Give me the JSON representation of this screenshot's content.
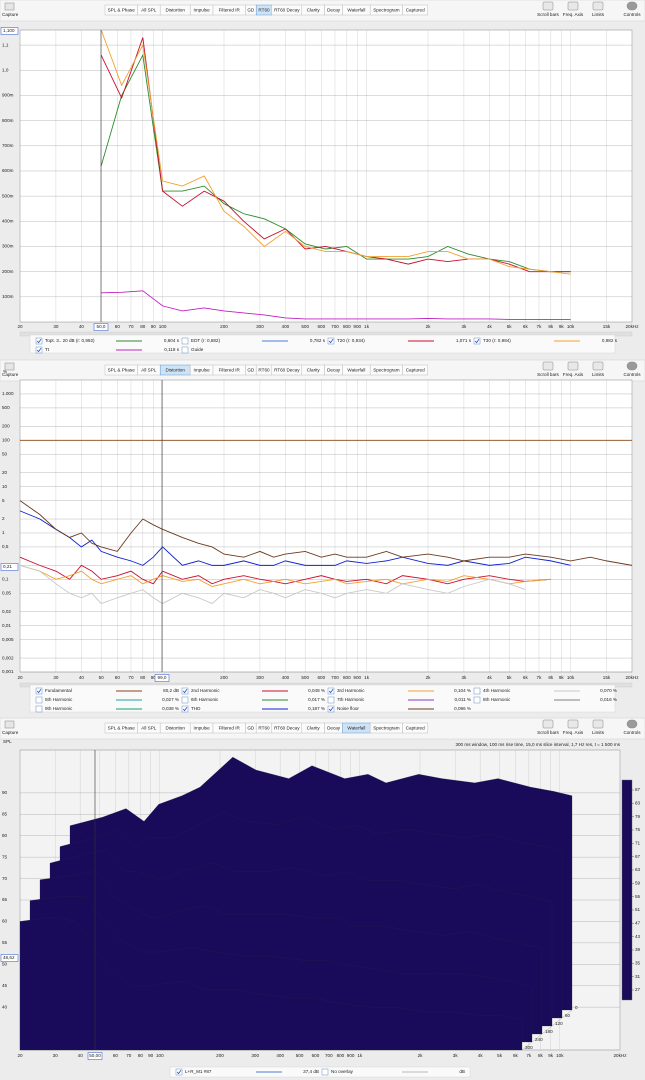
{
  "toolbar": {
    "capture": "Capture",
    "tabs": [
      "SPL & Phase",
      "All SPL",
      "Distortion",
      "Impulse",
      "Filtered IR",
      "GD",
      "RT60",
      "RT60 Decay",
      "Clarity",
      "Decay",
      "Waterfall",
      "Spectrogram",
      "Captured"
    ],
    "tools": [
      "Scroll bars",
      "Freq. Axis",
      "Limits",
      "Controls"
    ]
  },
  "chart_data": [
    {
      "type": "line",
      "active_tab": "RT60",
      "log_x": true,
      "grid": true,
      "cursor_x_label": "50,0",
      "cursor_y_label": "1,100",
      "x": [
        50,
        63,
        80,
        100,
        125,
        160,
        200,
        250,
        315,
        400,
        500,
        630,
        800,
        1000,
        1250,
        1600,
        2000,
        2500,
        3150,
        4000,
        5000,
        6300,
        8000,
        10000
      ],
      "xlim": [
        20,
        20000
      ],
      "ylim": [
        0,
        1.16
      ],
      "xticks": [
        20,
        30,
        40,
        50,
        60,
        70,
        80,
        90,
        100,
        200,
        300,
        400,
        500,
        600,
        700,
        800,
        900,
        {
          "value": 1000,
          "label": "1k"
        },
        {
          "value": 2000,
          "label": "2k"
        },
        {
          "value": 3000,
          "label": "3k"
        },
        {
          "value": 4000,
          "label": "4k"
        },
        {
          "value": 5000,
          "label": "5k"
        },
        {
          "value": 6000,
          "label": "6k"
        },
        {
          "value": 7000,
          "label": "7k"
        },
        {
          "value": 8000,
          "label": "8k"
        },
        {
          "value": 9000,
          "label": "9k"
        },
        {
          "value": 10000,
          "label": "10k"
        },
        {
          "value": 15000,
          "label": "15k"
        },
        {
          "value": 20000,
          "label": "20kHz"
        }
      ],
      "yticks": [
        {
          "value": 0.1,
          "label": "100m"
        },
        {
          "value": 0.2,
          "label": "200m"
        },
        {
          "value": 0.3,
          "label": "300m"
        },
        {
          "value": 0.4,
          "label": "400m"
        },
        {
          "value": 0.5,
          "label": "500m"
        },
        {
          "value": 0.6,
          "label": "600m"
        },
        {
          "value": 0.7,
          "label": "700m"
        },
        {
          "value": 0.8,
          "label": "800m"
        },
        {
          "value": 0.9,
          "label": "900m"
        },
        {
          "value": 1,
          "label": "1,0"
        },
        {
          "value": 1.1,
          "label": "1,1"
        }
      ],
      "series": [
        {
          "name": "Topt. 3.. 20 dB (r: 0,992)",
          "color": "#2e8b2e",
          "checked": true,
          "legend_value": "0,604 s",
          "values": [
            0.62,
            0.9,
            1.06,
            0.52,
            0.52,
            0.54,
            0.47,
            0.43,
            0.41,
            0.37,
            0.31,
            0.29,
            0.3,
            0.25,
            0.25,
            0.25,
            0.26,
            0.3,
            0.27,
            0.25,
            0.24,
            0.21,
            0.2,
            0.2
          ]
        },
        {
          "name": "EDT (r: 0,882)",
          "color": "#4f7fd9",
          "checked": false,
          "legend_value": "0,782 s"
        },
        {
          "name": "T20 (r: 0,934)",
          "color": "#c8102e",
          "checked": true,
          "legend_value": "1,071 s",
          "values": [
            1.06,
            0.89,
            1.13,
            0.52,
            0.46,
            0.52,
            0.48,
            0.4,
            0.33,
            0.37,
            0.29,
            0.3,
            0.28,
            0.26,
            0.25,
            0.23,
            0.25,
            0.24,
            0.25,
            0.25,
            0.23,
            0.2,
            0.2,
            0.2
          ]
        },
        {
          "name": "T30 (r: 0,984)",
          "color": "#f0a030",
          "checked": true,
          "legend_value": "0,982 s",
          "values": [
            1.16,
            0.94,
            1.1,
            0.56,
            0.54,
            0.58,
            0.44,
            0.38,
            0.3,
            0.36,
            0.3,
            0.28,
            0.28,
            0.26,
            0.26,
            0.26,
            0.28,
            0.28,
            0.25,
            0.25,
            0.22,
            0.21,
            0.2,
            0.19
          ]
        },
        {
          "name": "Tt",
          "color": "#c020c0",
          "checked": true,
          "legend_value": "0,118 s",
          "values": [
            0.116,
            0.118,
            0.124,
            0.064,
            0.044,
            0.056,
            0.044,
            0.036,
            0.028,
            0.016,
            0.012,
            0.012,
            0.012,
            0.012,
            0.012,
            0.012,
            0.014,
            0.012,
            0.012,
            0.012,
            0.01,
            0.01,
            0.01,
            0.01
          ]
        }
      ],
      "legend_extra": "Guide"
    },
    {
      "type": "line",
      "active_tab": "Distortion",
      "log_x": true,
      "log_y": true,
      "grid": true,
      "y_label": "%",
      "cursor_x_label": "99,0",
      "cursor_y_label": "0,21",
      "x": [
        20,
        25,
        30,
        35,
        40,
        45,
        50,
        60,
        70,
        80,
        90,
        100,
        125,
        150,
        175,
        200,
        250,
        300,
        350,
        400,
        500,
        600,
        700,
        800,
        1000,
        1250,
        1500,
        2000,
        2500,
        3000,
        4000,
        5000,
        6000,
        8000,
        10000,
        12500,
        15000,
        20000
      ],
      "xlim": [
        20,
        20000
      ],
      "ylim": [
        0.001,
        2000
      ],
      "xticks": [
        20,
        30,
        40,
        50,
        60,
        70,
        80,
        90,
        100,
        200,
        300,
        400,
        500,
        600,
        700,
        800,
        900,
        {
          "value": 1000,
          "label": "1k"
        },
        {
          "value": 2000,
          "label": "2k"
        },
        {
          "value": 3000,
          "label": "3k"
        },
        {
          "value": 4000,
          "label": "4k"
        },
        {
          "value": 5000,
          "label": "5k"
        },
        {
          "value": 6000,
          "label": "6k"
        },
        {
          "value": 7000,
          "label": "7k"
        },
        {
          "value": 8000,
          "label": "8k"
        },
        {
          "value": 9000,
          "label": "9k"
        },
        {
          "value": 10000,
          "label": "10k"
        },
        {
          "value": 15000,
          "label": "15k"
        },
        {
          "value": 20000,
          "label": "20kHz"
        }
      ],
      "yticks": [
        {
          "value": 0.001,
          "label": "0,001"
        },
        {
          "value": 0.002,
          "label": "0,002"
        },
        {
          "value": 0.005,
          "label": "0,005"
        },
        {
          "value": 0.01,
          "label": "0,01"
        },
        {
          "value": 0.02,
          "label": "0,02"
        },
        {
          "value": 0.05,
          "label": "0,05"
        },
        {
          "value": 0.1,
          "label": "0,1"
        },
        {
          "value": 0.2,
          "label": "0,2"
        },
        {
          "value": 0.5,
          "label": "0,5"
        },
        1,
        2,
        5,
        10,
        20,
        50,
        100,
        200,
        500,
        {
          "value": 1000,
          "label": "1.000"
        }
      ],
      "series": [
        {
          "name": "Fundamental",
          "color": "#8b4513",
          "checked": true,
          "legend_value": "80,2 dB",
          "level": 100
        },
        {
          "name": "2nd Harmonic",
          "color": "#c8102e",
          "checked": true,
          "legend_value": "0,048 %",
          "values": [
            0.3,
            0.2,
            0.15,
            0.1,
            0.2,
            0.15,
            0.1,
            0.12,
            0.15,
            0.1,
            0.08,
            0.15,
            0.1,
            0.12,
            0.08,
            0.1,
            0.12,
            0.1,
            0.09,
            0.08,
            0.1,
            0.12,
            0.1,
            0.09,
            0.1,
            0.08,
            0.12,
            0.1,
            0.08,
            0.1,
            0.12,
            0.1,
            0.09,
            0.1,
            null,
            null,
            null,
            null
          ]
        },
        {
          "name": "3rd Harmonic",
          "color": "#f0a030",
          "checked": true,
          "legend_value": "0,104 %",
          "values": [
            0.2,
            0.15,
            0.1,
            0.12,
            0.15,
            0.1,
            0.08,
            0.1,
            0.12,
            0.08,
            0.1,
            0.12,
            0.09,
            0.1,
            0.07,
            0.08,
            0.1,
            0.08,
            0.09,
            0.1,
            0.08,
            0.09,
            0.1,
            0.08,
            0.09,
            0.1,
            0.08,
            0.1,
            0.09,
            0.12,
            0.1,
            0.08,
            0.09,
            0.1,
            null,
            null,
            null,
            null
          ]
        },
        {
          "name": "4th Harmonic",
          "color": "#c8c8c8",
          "checked": false,
          "legend_value": "0,070 %",
          "values": [
            0.2,
            0.15,
            0.08,
            0.05,
            0.04,
            0.05,
            0.03,
            0.04,
            0.05,
            0.06,
            0.04,
            0.03,
            0.05,
            0.04,
            0.03,
            0.05,
            0.04,
            0.06,
            0.05,
            0.04,
            0.06,
            0.05,
            0.04,
            0.05,
            0.06,
            0.05,
            0.08,
            0.06,
            0.05,
            0.07,
            0.1,
            0.08,
            0.06,
            null,
            null,
            null,
            null,
            null
          ]
        },
        {
          "name": "5th Harmonic",
          "color": "#20a0a0",
          "checked": false,
          "legend_value": "0,027 %"
        },
        {
          "name": "6th Harmonic",
          "color": "#2e8b2e",
          "checked": false,
          "legend_value": "0,017 %"
        },
        {
          "name": "7th Harmonic",
          "color": "#8040c0",
          "checked": false,
          "legend_value": "0,011 %"
        },
        {
          "name": "8th Harmonic",
          "color": "#808080",
          "checked": false,
          "legend_value": "0,016 %"
        },
        {
          "name": "9th Harmonic",
          "color": "#10a070",
          "checked": false,
          "legend_value": "0,038 %"
        },
        {
          "name": "THD",
          "color": "#1020d0",
          "checked": true,
          "legend_value": "0,187 %",
          "values": [
            3,
            2,
            1.2,
            0.8,
            0.5,
            0.7,
            0.4,
            0.3,
            0.25,
            0.2,
            0.3,
            0.5,
            0.2,
            0.25,
            0.2,
            0.2,
            0.25,
            0.2,
            0.2,
            0.25,
            0.2,
            0.2,
            0.2,
            0.25,
            0.22,
            0.25,
            0.3,
            0.22,
            0.2,
            0.25,
            0.2,
            0.22,
            0.3,
            0.25,
            0.2,
            null,
            null,
            null
          ]
        },
        {
          "name": "Noise floor",
          "color": "#6b3a1f",
          "checked": true,
          "legend_value": "0,096 %",
          "values": [
            5,
            2.5,
            1.2,
            0.8,
            1,
            0.6,
            0.5,
            0.4,
            1,
            2,
            1.5,
            1.2,
            0.8,
            0.6,
            0.5,
            0.35,
            0.3,
            0.4,
            0.3,
            0.35,
            0.4,
            0.3,
            0.35,
            0.3,
            0.3,
            0.4,
            0.3,
            0.35,
            0.3,
            0.25,
            0.3,
            0.3,
            0.35,
            0.3,
            0.25,
            0.3,
            0.25,
            0.2
          ]
        }
      ]
    },
    {
      "type": "waterfall",
      "active_tab": "Waterfall",
      "log_x": true,
      "grid": true,
      "y_label": "SPL",
      "subtitle": "300 ms window, 100 ms rise time, 15,0 ms slice interval, 1,7 Hz res, t = 1 500 ms",
      "cursor_x_label": "50,00",
      "cursor_y_label": "48,62",
      "x": [
        20,
        30,
        40,
        50,
        60,
        80,
        100,
        150,
        200,
        300,
        400,
        600,
        800,
        1000,
        1500,
        2000,
        3000,
        4000,
        6000,
        8000,
        10000
      ],
      "xlim": [
        20,
        20000
      ],
      "ylim": [
        30,
        100
      ],
      "xticks": [
        20,
        30,
        40,
        50,
        60,
        70,
        80,
        90,
        100,
        200,
        300,
        400,
        500,
        600,
        700,
        800,
        900,
        {
          "value": 1000,
          "label": "1k"
        },
        {
          "value": 2000,
          "label": "2k"
        },
        {
          "value": 3000,
          "label": "3k"
        },
        {
          "value": 4000,
          "label": "4k"
        },
        {
          "value": 5000,
          "label": "5k"
        },
        {
          "value": 6000,
          "label": "6k"
        },
        {
          "value": 7000,
          "label": "7k"
        },
        {
          "value": 8000,
          "label": "8k"
        },
        {
          "value": 9000,
          "label": "9k"
        },
        {
          "value": 10000,
          "label": "10k"
        },
        {
          "value": 20000,
          "label": "20kHz"
        }
      ],
      "yticks": [
        40,
        45,
        50,
        55,
        60,
        65,
        70,
        75,
        80,
        85,
        90
      ],
      "zlim": [
        24,
        90
      ],
      "zticks": [
        27,
        31,
        35,
        39,
        43,
        47,
        51,
        55,
        59,
        63,
        67,
        71,
        75,
        79,
        83,
        87
      ],
      "slices": [
        {
          "time": 0,
          "values": [
            73,
            75,
            77,
            74,
            78,
            80,
            82,
            89,
            86,
            84,
            87,
            84,
            85,
            83,
            85,
            84,
            83,
            84,
            82,
            81,
            80
          ]
        },
        {
          "time": 60,
          "values": [
            70,
            72,
            74,
            70,
            72,
            72,
            74,
            78,
            76,
            75,
            77,
            74,
            75,
            73,
            74,
            73,
            72,
            73,
            71,
            70,
            69
          ]
        },
        {
          "time": 120,
          "values": [
            68,
            70,
            71,
            66,
            66,
            64,
            66,
            68,
            66,
            66,
            67,
            65,
            66,
            64,
            64,
            63,
            62,
            63,
            61,
            60,
            59
          ]
        },
        {
          "time": 180,
          "values": [
            66,
            67,
            68,
            62,
            60,
            57,
            58,
            60,
            58,
            58,
            58,
            57,
            57,
            55,
            55,
            54,
            53,
            54,
            52,
            51,
            50
          ]
        },
        {
          "time": 240,
          "values": [
            63,
            64,
            64,
            58,
            54,
            51,
            51,
            52,
            51,
            50,
            50,
            49,
            49,
            48,
            47,
            46,
            46,
            46,
            45,
            44,
            43
          ]
        },
        {
          "time": 300,
          "values": [
            60,
            61,
            60,
            54,
            49,
            45,
            45,
            46,
            44,
            44,
            43,
            42,
            42,
            41,
            40,
            40,
            39,
            39,
            38,
            38,
            37
          ]
        }
      ],
      "legend": [
        {
          "name": "L+R_M1 #87",
          "color": "#4a7fd0",
          "checked": true,
          "legend_value": "37,4 dB"
        },
        {
          "name": "No overlay",
          "color": "#bbbbbb",
          "checked": false,
          "legend_value": "dB"
        }
      ]
    }
  ]
}
